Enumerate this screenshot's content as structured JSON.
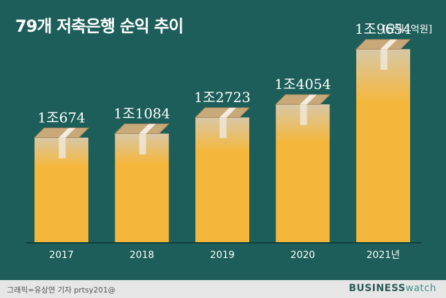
{
  "header": {
    "title": "79개 저축은행 순익 추이",
    "unit": "[단위: 억원]"
  },
  "footer": {
    "credit": "그래픽=유상연 기자 prtsy201@",
    "brand_bold": "BUSINESS",
    "brand_light": "watch"
  },
  "colors": {
    "background": "#1d5e5a",
    "bar": "#f5b73b",
    "bar_top": "#c9a97a",
    "footer": "#e6e6e6"
  },
  "chart_data": {
    "type": "bar",
    "categories": [
      "2017",
      "2018",
      "2019",
      "2020",
      "2021년"
    ],
    "values": [
      10674,
      11084,
      12723,
      14054,
      19654
    ],
    "data_labels": [
      "1조674",
      "1조1084",
      "1조2723",
      "1조4054",
      "1조9654"
    ],
    "title": "79개 저축은행 순익 추이",
    "unit": "[단위: 억원]",
    "xlabel": "",
    "ylabel": "",
    "ylim": [
      0,
      21000
    ],
    "grid": false,
    "legend": "none"
  }
}
